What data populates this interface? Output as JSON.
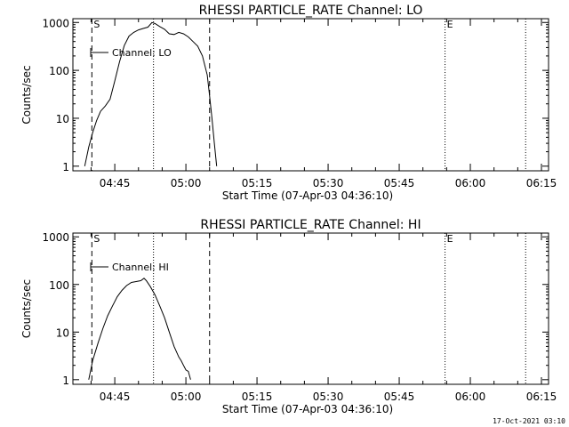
{
  "footer": {
    "timestamp": "17-Oct-2021 03:10"
  },
  "colors": {
    "background": "#ffffff",
    "foreground": "#000000"
  },
  "chart_data": [
    {
      "type": "line",
      "title": "RHESSI PARTICLE_RATE Channel: LO",
      "xlabel": "Start Time (07-Apr-03 04:36:10)",
      "ylabel": "Counts/sec",
      "y_scale": "log",
      "xlim": [
        "04:36:10",
        "06:16:30"
      ],
      "ylim": [
        0.8,
        1200
      ],
      "x_ticks": [
        "04:45",
        "05:00",
        "05:15",
        "05:30",
        "05:45",
        "06:00",
        "06:15"
      ],
      "y_ticks": [
        "1",
        "10",
        "100",
        "1000"
      ],
      "legend": {
        "label": "Channel: LO",
        "position": "top-left"
      },
      "markers": [
        {
          "label": "S",
          "time": "04:40:10",
          "style": "dashed"
        },
        {
          "label": "",
          "time": "04:53:10",
          "style": "dotted"
        },
        {
          "label": "",
          "time": "05:05:00",
          "style": "dashed"
        },
        {
          "label": "E",
          "time": "05:54:40",
          "style": "dotted"
        },
        {
          "label": "",
          "time": "06:11:40",
          "style": "dotted"
        }
      ],
      "series": [
        {
          "name": "Channel: LO",
          "x": [
            "04:38:40",
            "04:39:30",
            "04:40:20",
            "04:41:10",
            "04:42:00",
            "04:43:00",
            "04:44:00",
            "04:45:00",
            "04:46:00",
            "04:47:00",
            "04:48:00",
            "04:49:00",
            "04:50:00",
            "04:51:00",
            "04:52:00",
            "04:52:50",
            "04:53:30",
            "04:54:30",
            "04:55:30",
            "04:56:30",
            "04:57:30",
            "04:58:30",
            "04:59:30",
            "05:00:30",
            "05:01:30",
            "05:02:30",
            "05:03:30",
            "05:04:30",
            "05:05:00",
            "05:05:30",
            "05:06:00",
            "05:06:30"
          ],
          "y": [
            1.0,
            2.5,
            5,
            9,
            14,
            18,
            25,
            60,
            150,
            330,
            520,
            620,
            700,
            750,
            800,
            1000,
            950,
            820,
            720,
            580,
            560,
            620,
            580,
            500,
            400,
            320,
            200,
            80,
            30,
            10,
            3,
            1.0
          ]
        }
      ]
    },
    {
      "type": "line",
      "title": "RHESSI PARTICLE_RATE Channel: HI",
      "xlabel": "Start Time (07-Apr-03 04:36:10)",
      "ylabel": "Counts/sec",
      "y_scale": "log",
      "xlim": [
        "04:36:10",
        "06:16:30"
      ],
      "ylim": [
        0.8,
        1200
      ],
      "x_ticks": [
        "04:45",
        "05:00",
        "05:15",
        "05:30",
        "05:45",
        "06:00",
        "06:15"
      ],
      "y_ticks": [
        "1",
        "10",
        "100",
        "1000"
      ],
      "legend": {
        "label": "Channel: HI",
        "position": "top-left"
      },
      "markers": [
        {
          "label": "S",
          "time": "04:40:10",
          "style": "dashed"
        },
        {
          "label": "",
          "time": "04:53:10",
          "style": "dotted"
        },
        {
          "label": "",
          "time": "05:05:00",
          "style": "dashed"
        },
        {
          "label": "E",
          "time": "05:54:40",
          "style": "dotted"
        },
        {
          "label": "",
          "time": "06:11:40",
          "style": "dotted"
        }
      ],
      "series": [
        {
          "name": "Channel: HI",
          "x": [
            "04:39:30",
            "04:40:20",
            "04:41:30",
            "04:42:30",
            "04:43:30",
            "04:44:30",
            "04:45:30",
            "04:46:30",
            "04:47:30",
            "04:48:30",
            "04:49:30",
            "04:50:30",
            "04:51:10",
            "04:51:40",
            "04:52:30",
            "04:53:30",
            "04:54:30",
            "04:55:30",
            "04:56:30",
            "04:57:30",
            "04:58:30",
            "04:59:00",
            "04:59:30",
            "05:00:00",
            "05:00:30",
            "05:01:00"
          ],
          "y": [
            1.0,
            2.5,
            6,
            12,
            22,
            35,
            55,
            75,
            95,
            110,
            115,
            120,
            135,
            120,
            90,
            60,
            35,
            20,
            10,
            5,
            3,
            2.5,
            2,
            1.6,
            1.5,
            1.0
          ]
        }
      ]
    }
  ]
}
